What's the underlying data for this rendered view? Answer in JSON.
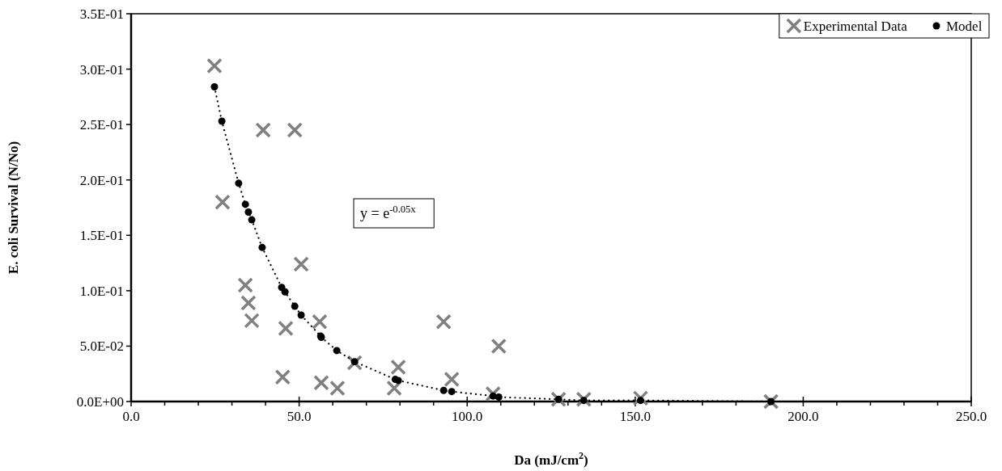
{
  "chart_data": {
    "type": "scatter",
    "xlabel": "Da (mJ/cm$^{2}$)",
    "ylabel": "E. coli Survival (N/No)",
    "annotations": [
      "y = e$^{-0.05x}$"
    ],
    "series": [
      {
        "name": "Experimental Data",
        "marker": "cross",
        "color": "#808080",
        "x": [
          24.8,
          27.2,
          39.3,
          48.7,
          50.6,
          34.0,
          34.9,
          35.9,
          46.0,
          56.1,
          45.1,
          56.6,
          61.4,
          66.5,
          79.5,
          78.3,
          93.0,
          109.4,
          95.4,
          107.7,
          127.2,
          134.7,
          151.6,
          190.4
        ],
        "values": [
          0.303,
          0.18,
          0.245,
          0.245,
          0.124,
          0.105,
          0.089,
          0.073,
          0.066,
          0.072,
          0.022,
          0.017,
          0.012,
          0.035,
          0.031,
          0.012,
          0.072,
          0.05,
          0.02,
          0.007,
          0.002,
          0.002,
          0.003,
          0.0
        ]
      },
      {
        "name": "Model",
        "type": "line",
        "marker": "circle",
        "line_style": "dotted",
        "color": "#000000",
        "x": [
          24.8,
          27.0,
          32.0,
          34.0,
          34.9,
          35.9,
          39.0,
          44.8,
          45.8,
          48.7,
          50.6,
          56.4,
          56.6,
          61.2,
          66.5,
          78.6,
          79.5,
          93.0,
          95.4,
          107.7,
          109.4,
          127.2,
          134.7,
          151.6,
          190.4
        ],
        "values": [
          0.284,
          0.253,
          0.197,
          0.178,
          0.171,
          0.164,
          0.139,
          0.103,
          0.099,
          0.086,
          0.078,
          0.059,
          0.058,
          0.046,
          0.036,
          0.02,
          0.019,
          0.01,
          0.009,
          0.005,
          0.004,
          0.002,
          0.001,
          0.001,
          0.0
        ]
      }
    ],
    "xlim": [
      0,
      250
    ],
    "xticks": [
      {
        "value": 0,
        "label": "0.0"
      },
      {
        "value": 10,
        "label": null
      },
      {
        "value": 20,
        "label": null
      },
      {
        "value": 30,
        "label": null
      },
      {
        "value": 40,
        "label": null
      },
      {
        "value": 50,
        "label": "50.0"
      },
      {
        "value": 60,
        "label": null
      },
      {
        "value": 70,
        "label": null
      },
      {
        "value": 80,
        "label": null
      },
      {
        "value": 90,
        "label": null
      },
      {
        "value": 100,
        "label": "100.0"
      },
      {
        "value": 110,
        "label": null
      },
      {
        "value": 120,
        "label": null
      },
      {
        "value": 130,
        "label": null
      },
      {
        "value": 140,
        "label": null
      },
      {
        "value": 150,
        "label": "150.0"
      },
      {
        "value": 160,
        "label": null
      },
      {
        "value": 170,
        "label": null
      },
      {
        "value": 180,
        "label": null
      },
      {
        "value": 190,
        "label": null
      },
      {
        "value": 200,
        "label": "200.0"
      },
      {
        "value": 210,
        "label": null
      },
      {
        "value": 220,
        "label": null
      },
      {
        "value": 230,
        "label": null
      },
      {
        "value": 240,
        "label": null
      },
      {
        "value": 250,
        "label": "250.0"
      }
    ],
    "ylim": [
      0,
      0.35
    ],
    "yticks": [
      {
        "value": 0,
        "label": "0.0E+00"
      },
      {
        "value": 0.05,
        "label": "5.0E-02"
      },
      {
        "value": 0.1,
        "label": "1.0E-01"
      },
      {
        "value": 0.15,
        "label": "1.5E-01"
      },
      {
        "value": 0.2,
        "label": "2.0E-01"
      },
      {
        "value": 0.25,
        "label": "2.5E-01"
      },
      {
        "value": 0.3,
        "label": "3.0E-01"
      },
      {
        "value": 0.35,
        "label": "3.5E-01"
      }
    ],
    "grid": false,
    "legend": "top right"
  }
}
